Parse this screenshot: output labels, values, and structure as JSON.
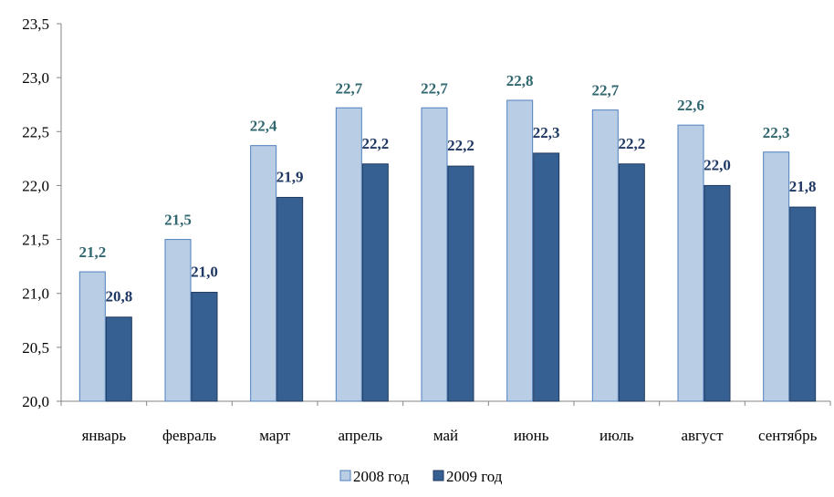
{
  "chart_data": {
    "type": "bar",
    "title": "",
    "xlabel": "",
    "ylabel": "",
    "ylim": [
      20.0,
      23.5
    ],
    "ytick_step": 0.5,
    "yticks": [
      "20,0",
      "20,5",
      "21,0",
      "21,5",
      "22,0",
      "22,5",
      "23,0",
      "23,5"
    ],
    "grid": false,
    "legend_position": "bottom",
    "categories": [
      "январь",
      "февраль",
      "март",
      "апрель",
      "май",
      "июнь",
      "июль",
      "август",
      "сентябрь"
    ],
    "series": [
      {
        "name": "2008 год",
        "color": "#b9cde5",
        "stroke": "#4f81bd",
        "label_color": "#31676f",
        "values": [
          21.2,
          21.5,
          22.37,
          22.72,
          22.72,
          22.79,
          22.7,
          22.56,
          22.31
        ],
        "labels": [
          "21,2",
          "21,5",
          "22,4",
          "22,7",
          "22,7",
          "22,8",
          "22,7",
          "22,6",
          "22,3"
        ]
      },
      {
        "name": "2009 год",
        "color": "#376092",
        "stroke": "#1f3a5f",
        "label_color": "#1f3864",
        "values": [
          20.78,
          21.01,
          21.89,
          22.2,
          22.18,
          22.3,
          22.2,
          22.0,
          21.8
        ],
        "labels": [
          "20,8",
          "21,0",
          "21,9",
          "22,2",
          "22,2",
          "22,3",
          "22,2",
          "22,0",
          "21,8"
        ]
      }
    ]
  }
}
